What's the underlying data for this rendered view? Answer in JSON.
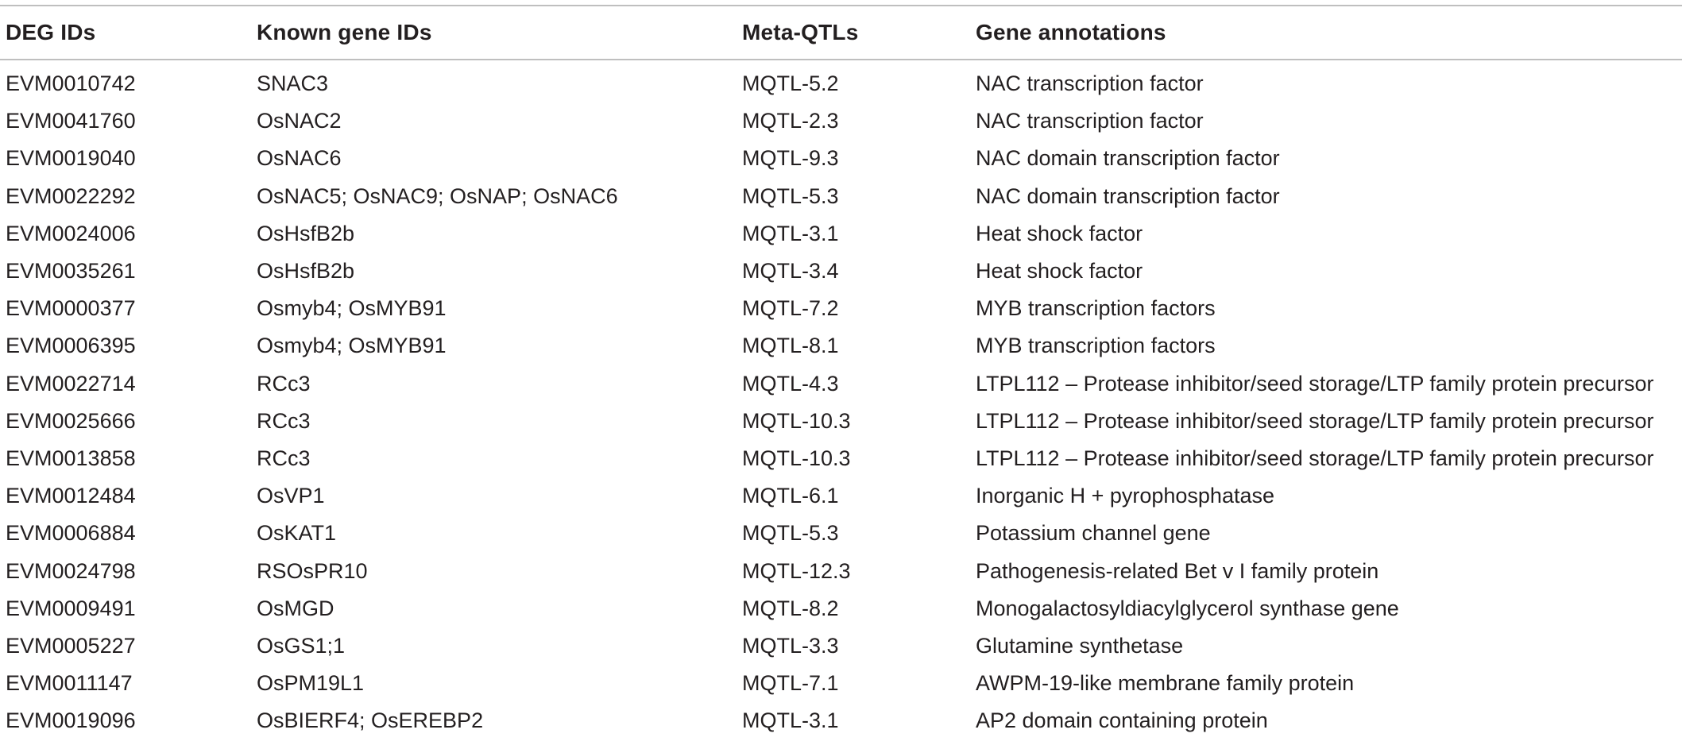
{
  "table": {
    "headers": [
      "DEG IDs",
      "Known gene IDs",
      "Meta-QTLs",
      "Gene annotations"
    ],
    "rows": [
      [
        "EVM0010742",
        "SNAC3",
        "MQTL-5.2",
        "NAC transcription factor"
      ],
      [
        "EVM0041760",
        "OsNAC2",
        "MQTL-2.3",
        "NAC transcription factor"
      ],
      [
        "EVM0019040",
        "OsNAC6",
        "MQTL-9.3",
        "NAC domain transcription factor"
      ],
      [
        "EVM0022292",
        "OsNAC5; OsNAC9; OsNAP; OsNAC6",
        "MQTL-5.3",
        "NAC domain transcription factor"
      ],
      [
        "EVM0024006",
        "OsHsfB2b",
        "MQTL-3.1",
        "Heat shock factor"
      ],
      [
        "EVM0035261",
        "OsHsfB2b",
        "MQTL-3.4",
        "Heat shock factor"
      ],
      [
        "EVM0000377",
        "Osmyb4; OsMYB91",
        "MQTL-7.2",
        "MYB transcription factors"
      ],
      [
        "EVM0006395",
        "Osmyb4; OsMYB91",
        "MQTL-8.1",
        "MYB transcription factors"
      ],
      [
        "EVM0022714",
        "RCc3",
        "MQTL-4.3",
        "LTPL112 – Protease inhibitor/seed storage/LTP family protein precursor"
      ],
      [
        "EVM0025666",
        "RCc3",
        "MQTL-10.3",
        "LTPL112 – Protease inhibitor/seed storage/LTP family protein precursor"
      ],
      [
        "EVM0013858",
        "RCc3",
        "MQTL-10.3",
        "LTPL112 – Protease inhibitor/seed storage/LTP family protein precursor"
      ],
      [
        "EVM0012484",
        "OsVP1",
        "MQTL-6.1",
        "Inorganic H + pyrophosphatase"
      ],
      [
        "EVM0006884",
        "OsKAT1",
        "MQTL-5.3",
        "Potassium channel gene"
      ],
      [
        "EVM0024798",
        "RSOsPR10",
        "MQTL-12.3",
        "Pathogenesis-related Bet v I family protein"
      ],
      [
        "EVM0009491",
        "OsMGD",
        "MQTL-8.2",
        "Monogalactosyldiacylglycerol synthase gene"
      ],
      [
        "EVM0005227",
        "OsGS1;1",
        "MQTL-3.3",
        "Glutamine synthetase"
      ],
      [
        "EVM0011147",
        "OsPM19L1",
        "MQTL-7.1",
        "AWPM-19-like membrane family protein"
      ],
      [
        "EVM0019096",
        "OsBIERF4; OsEREBP2",
        "MQTL-3.1",
        "AP2 domain containing protein"
      ]
    ]
  }
}
